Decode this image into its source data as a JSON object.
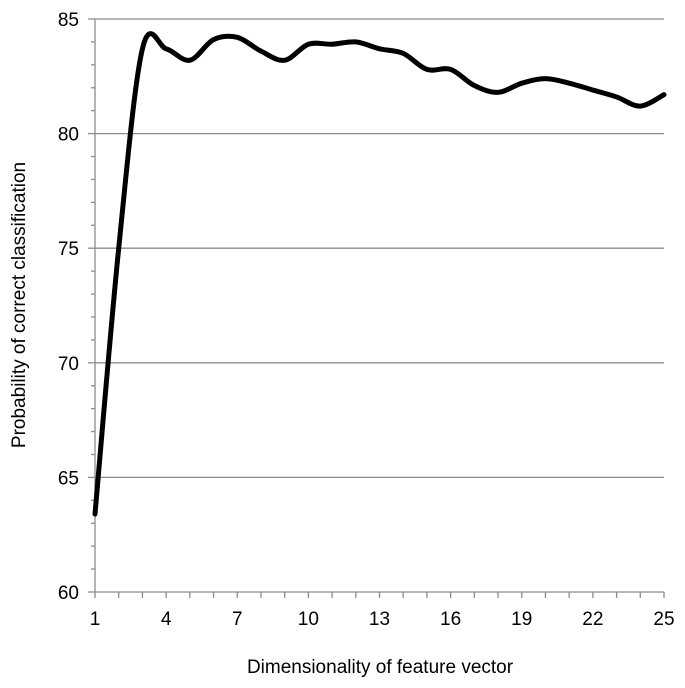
{
  "chart_data": {
    "type": "line",
    "xlabel": "Dimensionality of feature vector",
    "ylabel": "Probability of correct classification",
    "xlim": [
      1,
      25
    ],
    "ylim": [
      60,
      85
    ],
    "xticks": [
      1,
      4,
      7,
      10,
      13,
      16,
      19,
      22,
      25
    ],
    "yticks": [
      60,
      65,
      70,
      75,
      80,
      85
    ],
    "grid": "horizontal",
    "legend": "none",
    "series": [
      {
        "color": "#000000",
        "x": [
          1,
          2,
          3,
          4,
          5,
          6,
          7,
          8,
          9,
          10,
          11,
          12,
          13,
          14,
          15,
          16,
          17,
          18,
          19,
          20,
          21,
          22,
          23,
          24,
          25
        ],
        "y": [
          63.4,
          75.0,
          83.7,
          83.7,
          83.2,
          84.1,
          84.2,
          83.6,
          83.2,
          83.9,
          83.9,
          84.0,
          83.7,
          83.5,
          82.8,
          82.8,
          82.1,
          81.8,
          82.2,
          82.4,
          82.2,
          81.9,
          81.6,
          81.2,
          81.7
        ]
      }
    ]
  }
}
